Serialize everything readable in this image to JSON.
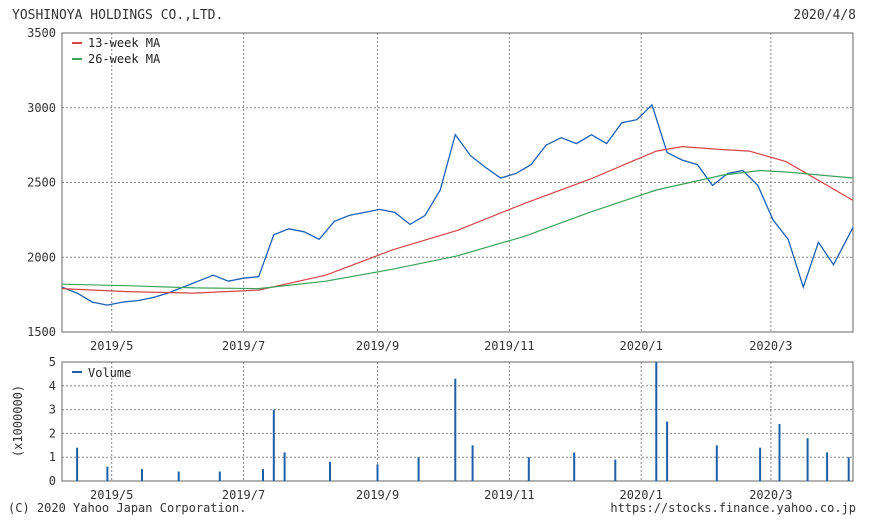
{
  "header": {
    "company": "YOSHINOYA HOLDINGS CO.,LTD.",
    "date": "2020/4/8"
  },
  "footer": {
    "copyright": "(C) 2020 Yahoo Japan Corporation.",
    "source": "https://stocks.finance.yahoo.co.jp"
  },
  "colors": {
    "price": "#1a5fb4",
    "ma13": "#d64545",
    "ma26": "#3aa35a",
    "volume": "#1f5fa8",
    "grid": "#888888",
    "frame": "#666666"
  },
  "chart_data": [
    {
      "type": "line",
      "x_range": [
        "2019-04-08",
        "2020-04-08"
      ],
      "x_ticks": [
        {
          "label": "2019/5",
          "date": "2019-05-01"
        },
        {
          "label": "2019/7",
          "date": "2019-07-01"
        },
        {
          "label": "2019/9",
          "date": "2019-09-01"
        },
        {
          "label": "2019/11",
          "date": "2019-11-01"
        },
        {
          "label": "2020/1",
          "date": "2020-01-01"
        },
        {
          "label": "2020/3",
          "date": "2020-03-01"
        }
      ],
      "ylim": [
        1500,
        3500
      ],
      "y_ticks": [
        1500,
        2000,
        2500,
        3000,
        3500
      ],
      "grid": true,
      "legend_position": "top-left",
      "series": [
        {
          "name": "",
          "color_key": "price",
          "points": [
            [
              "2019-04-08",
              1800
            ],
            [
              "2019-04-15",
              1760
            ],
            [
              "2019-04-22",
              1700
            ],
            [
              "2019-04-29",
              1680
            ],
            [
              "2019-05-06",
              1700
            ],
            [
              "2019-05-13",
              1710
            ],
            [
              "2019-05-20",
              1730
            ],
            [
              "2019-05-27",
              1760
            ],
            [
              "2019-06-03",
              1800
            ],
            [
              "2019-06-10",
              1840
            ],
            [
              "2019-06-17",
              1880
            ],
            [
              "2019-06-24",
              1840
            ],
            [
              "2019-07-01",
              1860
            ],
            [
              "2019-07-08",
              1870
            ],
            [
              "2019-07-15",
              2150
            ],
            [
              "2019-07-22",
              2190
            ],
            [
              "2019-07-29",
              2170
            ],
            [
              "2019-08-05",
              2120
            ],
            [
              "2019-08-12",
              2240
            ],
            [
              "2019-08-19",
              2280
            ],
            [
              "2019-08-26",
              2300
            ],
            [
              "2019-09-02",
              2320
            ],
            [
              "2019-09-09",
              2300
            ],
            [
              "2019-09-16",
              2220
            ],
            [
              "2019-09-23",
              2280
            ],
            [
              "2019-09-30",
              2450
            ],
            [
              "2019-10-07",
              2820
            ],
            [
              "2019-10-14",
              2680
            ],
            [
              "2019-10-21",
              2600
            ],
            [
              "2019-10-28",
              2530
            ],
            [
              "2019-11-04",
              2560
            ],
            [
              "2019-11-11",
              2620
            ],
            [
              "2019-11-18",
              2750
            ],
            [
              "2019-11-25",
              2800
            ],
            [
              "2019-12-02",
              2760
            ],
            [
              "2019-12-09",
              2820
            ],
            [
              "2019-12-16",
              2760
            ],
            [
              "2019-12-23",
              2900
            ],
            [
              "2019-12-30",
              2920
            ],
            [
              "2020-01-06",
              3020
            ],
            [
              "2020-01-13",
              2700
            ],
            [
              "2020-01-20",
              2650
            ],
            [
              "2020-01-27",
              2620
            ],
            [
              "2020-02-03",
              2480
            ],
            [
              "2020-02-10",
              2560
            ],
            [
              "2020-02-17",
              2580
            ],
            [
              "2020-02-24",
              2480
            ],
            [
              "2020-03-02",
              2250
            ],
            [
              "2020-03-09",
              2120
            ],
            [
              "2020-03-16",
              1800
            ],
            [
              "2020-03-23",
              2100
            ],
            [
              "2020-03-30",
              1950
            ],
            [
              "2020-04-08",
              2200
            ]
          ]
        },
        {
          "name": "13-week MA",
          "color_key": "ma13",
          "points": [
            [
              "2019-04-08",
              1790
            ],
            [
              "2019-05-08",
              1770
            ],
            [
              "2019-06-08",
              1760
            ],
            [
              "2019-07-08",
              1780
            ],
            [
              "2019-08-08",
              1880
            ],
            [
              "2019-09-08",
              2050
            ],
            [
              "2019-10-08",
              2180
            ],
            [
              "2019-11-08",
              2360
            ],
            [
              "2019-12-08",
              2520
            ],
            [
              "2020-01-08",
              2710
            ],
            [
              "2020-01-20",
              2740
            ],
            [
              "2020-02-08",
              2720
            ],
            [
              "2020-02-20",
              2710
            ],
            [
              "2020-03-08",
              2640
            ],
            [
              "2020-04-08",
              2380
            ]
          ]
        },
        {
          "name": "26-week MA",
          "color_key": "ma26",
          "points": [
            [
              "2019-04-08",
              1820
            ],
            [
              "2019-05-08",
              1810
            ],
            [
              "2019-06-08",
              1795
            ],
            [
              "2019-07-08",
              1790
            ],
            [
              "2019-08-08",
              1840
            ],
            [
              "2019-09-08",
              1920
            ],
            [
              "2019-10-08",
              2010
            ],
            [
              "2019-11-08",
              2140
            ],
            [
              "2019-12-08",
              2300
            ],
            [
              "2020-01-08",
              2450
            ],
            [
              "2020-02-08",
              2550
            ],
            [
              "2020-02-25",
              2580
            ],
            [
              "2020-03-08",
              2570
            ],
            [
              "2020-04-08",
              2530
            ]
          ]
        }
      ]
    },
    {
      "type": "bar",
      "y_unit": "(x1000000)",
      "ylim": [
        0,
        5
      ],
      "y_ticks": [
        0,
        1,
        2,
        3,
        4,
        5
      ],
      "grid": true,
      "legend_position": "top-left",
      "series": [
        {
          "name": "Volume",
          "color_key": "volume",
          "points": [
            [
              "2019-04-15",
              1.4
            ],
            [
              "2019-04-29",
              0.6
            ],
            [
              "2019-05-15",
              0.5
            ],
            [
              "2019-06-01",
              0.4
            ],
            [
              "2019-06-20",
              0.4
            ],
            [
              "2019-07-10",
              0.5
            ],
            [
              "2019-07-15",
              3.0
            ],
            [
              "2019-07-20",
              1.2
            ],
            [
              "2019-08-10",
              0.8
            ],
            [
              "2019-09-01",
              0.7
            ],
            [
              "2019-09-20",
              1.0
            ],
            [
              "2019-10-07",
              4.3
            ],
            [
              "2019-10-15",
              1.5
            ],
            [
              "2019-11-10",
              1.0
            ],
            [
              "2019-12-01",
              1.2
            ],
            [
              "2019-12-20",
              0.9
            ],
            [
              "2020-01-08",
              5.0
            ],
            [
              "2020-01-13",
              2.5
            ],
            [
              "2020-02-05",
              1.5
            ],
            [
              "2020-02-25",
              1.4
            ],
            [
              "2020-03-05",
              2.4
            ],
            [
              "2020-03-18",
              1.8
            ],
            [
              "2020-03-27",
              1.2
            ],
            [
              "2020-04-06",
              1.0
            ]
          ]
        }
      ]
    }
  ]
}
